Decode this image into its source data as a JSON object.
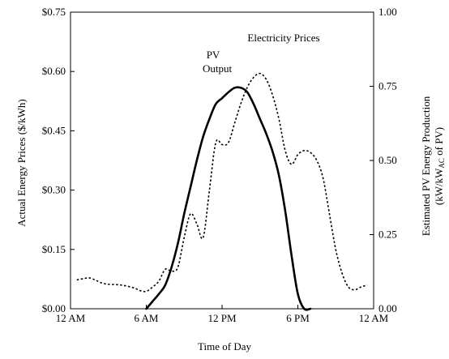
{
  "chart_data": {
    "type": "line",
    "title": "",
    "xlabel": "Time of Day",
    "ylabel_left": "Actual Energy Prices ($/kWh)",
    "ylabel_right": [
      "Estimated PV Energy Production",
      "(kW/kW",
      "AC",
      " of PV)"
    ],
    "xlim": [
      0,
      24
    ],
    "x_ticks": [
      0,
      6,
      12,
      18,
      24
    ],
    "x_tick_labels": [
      "12 AM",
      "6 AM",
      "12 PM",
      "6 PM",
      "12 AM"
    ],
    "ylim_left": [
      0,
      0.75
    ],
    "y_left_ticks": [
      0,
      0.15,
      0.3,
      0.45,
      0.6,
      0.75
    ],
    "y_left_tick_labels": [
      "$0.00",
      "$0.15",
      "$0.30",
      "$0.45",
      "$0.60",
      "$0.75"
    ],
    "ylim_right": [
      0,
      1.0
    ],
    "y_right_ticks": [
      0,
      0.25,
      0.5,
      0.75,
      1.0
    ],
    "y_right_tick_labels": [
      "0.00",
      "0.25",
      "0.50",
      "0.75",
      "1.00"
    ],
    "grid": false,
    "annotations": {
      "pv_line1": "PV",
      "pv_line2": "Output",
      "price": "Electricity Prices"
    },
    "series": [
      {
        "name": "Electricity Prices",
        "axis": "left",
        "style": "dotted",
        "x": [
          0.5,
          1.0,
          1.5,
          2.0,
          2.5,
          3.0,
          4.0,
          5.0,
          5.5,
          6.0,
          6.5,
          7.0,
          7.5,
          8.0,
          8.5,
          9.0,
          9.5,
          10.0,
          10.5,
          11.0,
          11.5,
          12.0,
          12.5,
          13.0,
          13.5,
          14.0,
          14.5,
          15.0,
          15.5,
          16.0,
          16.5,
          17.0,
          17.5,
          18.0,
          18.5,
          19.0,
          19.5,
          20.0,
          20.5,
          21.0,
          21.5,
          22.0,
          22.5,
          23.0,
          23.5
        ],
        "y": [
          0.073,
          0.076,
          0.078,
          0.072,
          0.065,
          0.062,
          0.06,
          0.053,
          0.046,
          0.044,
          0.055,
          0.07,
          0.1,
          0.095,
          0.105,
          0.18,
          0.24,
          0.215,
          0.18,
          0.3,
          0.42,
          0.415,
          0.42,
          0.47,
          0.52,
          0.56,
          0.585,
          0.595,
          0.58,
          0.54,
          0.48,
          0.4,
          0.365,
          0.39,
          0.4,
          0.395,
          0.375,
          0.33,
          0.24,
          0.15,
          0.09,
          0.055,
          0.048,
          0.055,
          0.06
        ]
      },
      {
        "name": "PV Output",
        "axis": "right",
        "style": "solid",
        "x": [
          6.0,
          6.5,
          7.0,
          7.5,
          8.0,
          8.5,
          9.0,
          9.5,
          10.0,
          10.5,
          11.0,
          11.5,
          12.0,
          12.5,
          13.0,
          13.5,
          14.0,
          14.5,
          15.0,
          15.5,
          16.0,
          16.5,
          17.0,
          17.5,
          18.0,
          18.5,
          19.0
        ],
        "y": [
          0.0,
          0.025,
          0.05,
          0.08,
          0.14,
          0.22,
          0.32,
          0.41,
          0.5,
          0.58,
          0.64,
          0.69,
          0.71,
          0.73,
          0.745,
          0.745,
          0.73,
          0.69,
          0.64,
          0.59,
          0.53,
          0.45,
          0.33,
          0.18,
          0.05,
          0.0,
          0.0
        ]
      }
    ]
  }
}
